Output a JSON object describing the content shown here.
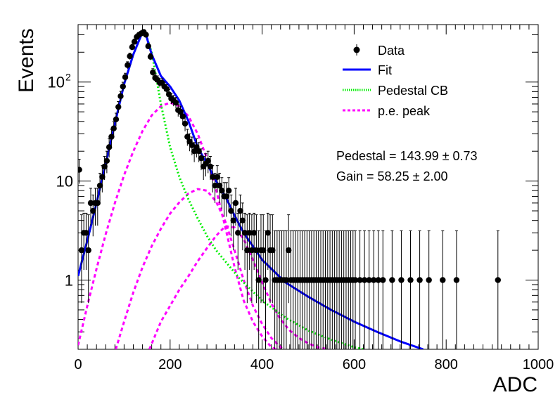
{
  "chart_data": {
    "type": "scatter",
    "xlabel": "ADC",
    "ylabel": "Events",
    "xlim": [
      0,
      1000
    ],
    "ylim": [
      0.2,
      380
    ],
    "yscale": "log",
    "grid": false,
    "legend_position": "top-right",
    "x_ticks": [
      "0",
      "200",
      "400",
      "600",
      "800",
      "1000"
    ],
    "y_ticks": [
      {
        "value": 1,
        "label": "1"
      },
      {
        "value": 10,
        "label": "10"
      },
      {
        "value": 100,
        "label": "10",
        "exponent": "2"
      }
    ],
    "legend": [
      {
        "label": "Data",
        "kind": "marker",
        "color": "#000000"
      },
      {
        "label": "Fit",
        "kind": "solid",
        "color": "#0000ff"
      },
      {
        "label": "Pedestal CB",
        "kind": "dotted",
        "color": "#00ee00"
      },
      {
        "label": "p.e. peak",
        "kind": "dashed",
        "color": "#ff00ff"
      }
    ],
    "annotations": [
      "Pedestal = 143.99 ± 0.73",
      "Gain = 58.25 ± 2.00"
    ],
    "fit_parameters": {
      "pedestal": 143.99,
      "pedestal_error": 0.73,
      "gain": 58.25,
      "gain_error": 2.0
    },
    "data_points": {
      "x": [
        0,
        5,
        10,
        15,
        20,
        25,
        30,
        35,
        40,
        45,
        50,
        55,
        60,
        65,
        70,
        75,
        80,
        85,
        90,
        95,
        100,
        105,
        110,
        115,
        120,
        125,
        130,
        135,
        140,
        145,
        150,
        155,
        160,
        165,
        170,
        175,
        180,
        185,
        190,
        195,
        200,
        205,
        210,
        215,
        220,
        225,
        230,
        235,
        240,
        245,
        250,
        255,
        260,
        265,
        270,
        275,
        280,
        285,
        290,
        295,
        300,
        305,
        310,
        315,
        320,
        325,
        330,
        335,
        340,
        345,
        350,
        355,
        360,
        365,
        370,
        375,
        380,
        385,
        390,
        395,
        400,
        405,
        410,
        415,
        420,
        425,
        430,
        435,
        440,
        445,
        450,
        455,
        460,
        465,
        470,
        475,
        480,
        485,
        490,
        495,
        500,
        505,
        510,
        515,
        520,
        525,
        530,
        535,
        540,
        545,
        550,
        555,
        560,
        565,
        570,
        575,
        580,
        585,
        590,
        595,
        600,
        610,
        620,
        630,
        640,
        650,
        660,
        680,
        700,
        720,
        740,
        760,
        790,
        820,
        910
      ],
      "y": [
        13,
        2,
        3,
        3,
        2,
        6,
        5,
        6,
        6,
        9,
        11,
        14,
        16,
        22,
        28,
        34,
        42,
        56,
        72,
        90,
        112,
        148,
        182,
        225,
        255,
        285,
        300,
        310,
        320,
        300,
        230,
        180,
        125,
        110,
        105,
        98,
        98,
        90,
        85,
        75,
        68,
        65,
        62,
        52,
        50,
        45,
        38,
        28,
        25,
        23,
        20,
        22,
        20,
        17,
        14,
        15,
        16,
        14,
        11,
        9,
        11,
        9,
        8,
        7,
        7,
        8,
        5,
        4,
        6,
        3,
        5,
        4,
        3,
        2,
        3,
        2,
        3,
        2,
        1,
        2,
        2,
        1,
        3,
        2,
        2,
        1,
        1,
        1,
        1,
        1,
        1,
        2,
        1,
        1,
        1,
        1,
        1,
        1,
        1,
        1,
        1,
        1,
        1,
        1,
        1,
        1,
        1,
        1,
        1,
        1,
        1,
        1,
        1,
        1,
        1,
        1,
        1,
        1,
        1,
        1,
        1,
        1,
        1,
        1,
        1,
        1,
        1,
        1,
        1,
        1,
        1,
        1,
        1,
        1,
        1
      ]
    },
    "series": [
      {
        "name": "Fit",
        "color": "#0000ff",
        "x": [
          0,
          20,
          40,
          60,
          80,
          100,
          120,
          140,
          145,
          160,
          180,
          200,
          220,
          240,
          260,
          280,
          300,
          320,
          340,
          360,
          380,
          400,
          450,
          500,
          550,
          600,
          650,
          700,
          750
        ],
        "y": [
          1.1,
          2.5,
          6,
          15,
          38,
          95,
          190,
          320,
          330,
          190,
          115,
          90,
          65,
          40,
          22,
          15,
          10,
          7,
          4.5,
          3,
          2.2,
          1.6,
          0.95,
          0.68,
          0.5,
          0.38,
          0.3,
          0.24,
          0.2
        ]
      },
      {
        "name": "Pedestal CB",
        "color": "#00ee00",
        "x": [
          0,
          20,
          40,
          60,
          80,
          100,
          120,
          140,
          145,
          160,
          170,
          180,
          200,
          220,
          240,
          260,
          280,
          300,
          350,
          400,
          450,
          500,
          550,
          600,
          620
        ],
        "y": [
          1.1,
          2.5,
          6,
          15,
          38,
          95,
          190,
          320,
          330,
          200,
          110,
          60,
          22,
          11,
          6.5,
          4.2,
          2.8,
          2,
          1.05,
          0.62,
          0.42,
          0.31,
          0.25,
          0.21,
          0.2
        ]
      },
      {
        "name": "p.e. peak 1",
        "color": "#ff00ff",
        "x": [
          0,
          20,
          40,
          60,
          80,
          100,
          120,
          140,
          160,
          180,
          200,
          220,
          240,
          260,
          280,
          300,
          320,
          340,
          360,
          380,
          400,
          420,
          430
        ],
        "y": [
          0.22,
          0.55,
          1.3,
          2.9,
          6,
          11.5,
          20,
          32,
          46,
          57,
          62,
          57,
          45,
          30,
          17,
          8.2,
          3.4,
          1.35,
          0.62,
          0.38,
          0.27,
          0.21,
          0.2
        ]
      },
      {
        "name": "p.e. peak 2",
        "color": "#ff00ff",
        "x": [
          82,
          100,
          120,
          140,
          160,
          180,
          200,
          220,
          240,
          260,
          280,
          300,
          320,
          340,
          360,
          380,
          400,
          420,
          440,
          448
        ],
        "y": [
          0.2,
          0.38,
          0.75,
          1.35,
          2.2,
          3.3,
          4.7,
          6.1,
          7.5,
          8.3,
          8.0,
          6.2,
          3.9,
          2.0,
          1.0,
          0.55,
          0.36,
          0.26,
          0.21,
          0.2
        ]
      },
      {
        "name": "p.e. peak 3",
        "color": "#ff00ff",
        "x": [
          155,
          180,
          200,
          220,
          240,
          260,
          280,
          300,
          320,
          340,
          360,
          380,
          400,
          420,
          440,
          460,
          480,
          500,
          520,
          545
        ],
        "y": [
          0.2,
          0.38,
          0.55,
          0.8,
          1.1,
          1.55,
          2.1,
          2.8,
          3.5,
          3.4,
          2.6,
          1.6,
          0.95,
          0.58,
          0.4,
          0.31,
          0.26,
          0.23,
          0.21,
          0.2
        ]
      }
    ]
  }
}
